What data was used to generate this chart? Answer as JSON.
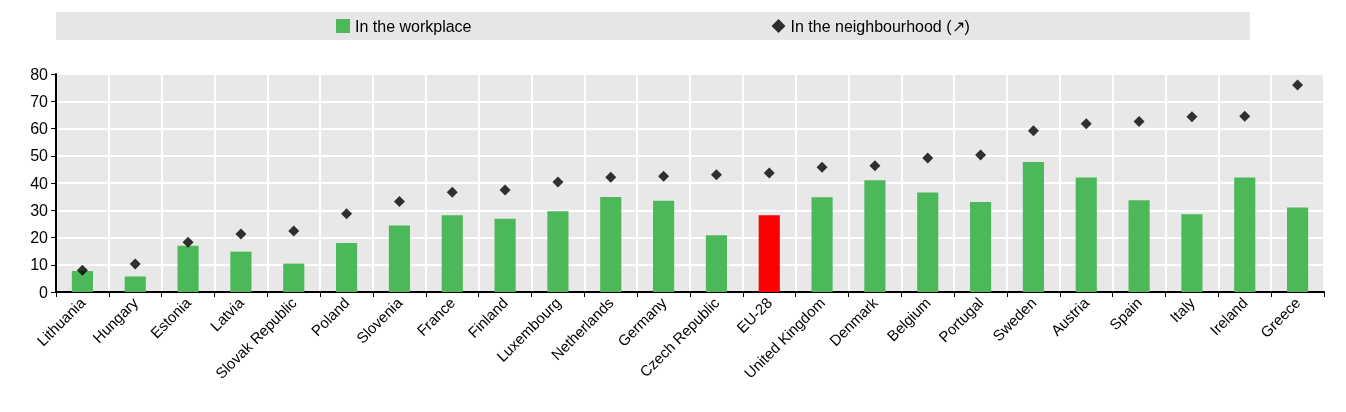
{
  "chart_data": {
    "type": "bar",
    "categories": [
      "Lithuania",
      "Hungary",
      "Estonia",
      "Latvia",
      "Slovak Republic",
      "Poland",
      "Slovenia",
      "France",
      "Finland",
      "Luxembourg",
      "Netherlands",
      "Germany",
      "Czech Republic",
      "EU-28",
      "United Kingdom",
      "Denmark",
      "Belgium",
      "Portugal",
      "Sweden",
      "Austria",
      "Spain",
      "Italy",
      "Ireland",
      "Greece"
    ],
    "series": [
      {
        "name": "In the workplace",
        "color": "#4cb85a",
        "colors": [
          "#4cb85a",
          "#4cb85a",
          "#4cb85a",
          "#4cb85a",
          "#4cb85a",
          "#4cb85a",
          "#4cb85a",
          "#4cb85a",
          "#4cb85a",
          "#4cb85a",
          "#4cb85a",
          "#4cb85a",
          "#4cb85a",
          "#ff0000",
          "#4cb85a",
          "#4cb85a",
          "#4cb85a",
          "#4cb85a",
          "#4cb85a",
          "#4cb85a",
          "#4cb85a",
          "#4cb85a",
          "#4cb85a",
          "#4cb85a"
        ],
        "values": [
          7.7,
          5.7,
          17,
          14.8,
          10.4,
          18,
          24.4,
          28.2,
          26.9,
          29.6,
          34.9,
          33.5,
          20.8,
          28.2,
          34.8,
          41,
          36.5,
          33,
          47.7,
          42,
          33.7,
          28.5,
          42,
          31
        ]
      },
      {
        "name": "In the neighbourhood (↗)",
        "type": "scatter",
        "marker": "diamond",
        "color": "#000000",
        "values": [
          8,
          10.3,
          18.3,
          21.3,
          22.4,
          28.7,
          33.2,
          36.6,
          37.4,
          40.4,
          42.1,
          42.5,
          43,
          43.7,
          45.8,
          46.3,
          49.2,
          50.3,
          59.2,
          61.7,
          62.6,
          64.3,
          64.5,
          76
        ]
      }
    ],
    "ylim": [
      0,
      80
    ],
    "yticks": [
      0,
      10,
      20,
      30,
      40,
      50,
      60,
      70,
      80
    ],
    "grid": true,
    "legend": "top"
  }
}
